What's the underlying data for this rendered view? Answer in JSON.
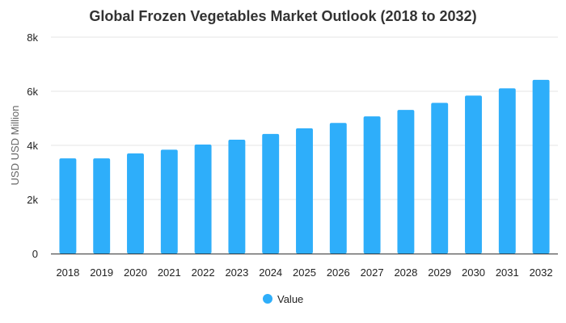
{
  "chart_data": {
    "type": "bar",
    "title": "Global Frozen Vegetables Market Outlook (2018 to 2032)",
    "xlabel": "",
    "ylabel": "USD USD Million",
    "categories": [
      "2018",
      "2019",
      "2020",
      "2021",
      "2022",
      "2023",
      "2024",
      "2025",
      "2026",
      "2027",
      "2028",
      "2029",
      "2030",
      "2031",
      "2032"
    ],
    "series": [
      {
        "name": "Value",
        "values": [
          3520,
          3520,
          3700,
          3840,
          4030,
          4210,
          4420,
          4630,
          4830,
          5070,
          5310,
          5570,
          5840,
          6110,
          6420
        ]
      }
    ],
    "ylim": [
      0,
      8000
    ],
    "yticks": [
      {
        "value": 0,
        "label": "0"
      },
      {
        "value": 2000,
        "label": "2k"
      },
      {
        "value": 4000,
        "label": "4k"
      },
      {
        "value": 6000,
        "label": "6k"
      },
      {
        "value": 8000,
        "label": "8k"
      }
    ],
    "grid": true,
    "legend_position": "bottom",
    "colors": {
      "bar": "#2eaefa",
      "grid": "#e6e6e6",
      "axis": "#333333"
    }
  }
}
